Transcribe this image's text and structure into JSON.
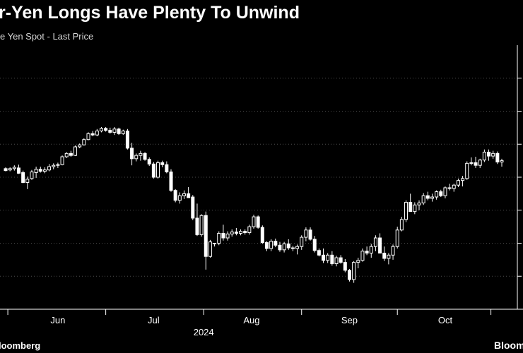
{
  "header": {
    "title": "r-Yen Longs Have Plenty To Unwind",
    "subtitle": "e Yen Spot - Last Price"
  },
  "footer": {
    "source": "loomberg",
    "brand": "Bloom"
  },
  "colors": {
    "background": "#000000",
    "candle": "#ffffff",
    "axis": "#ffffff",
    "grid": "#4d4d4d",
    "text": "#ffffff"
  },
  "chart_data": {
    "type": "candlestick",
    "title": "r-Yen Longs Have Plenty To Unwind",
    "subtitle": "e Yen Spot - Last Price",
    "x_tick_labels": [
      "Jun",
      "Jul",
      "Aug",
      "Sep",
      "Oct"
    ],
    "x_year_label": "2024",
    "x_tick_positions_data": [
      2,
      22,
      43,
      63,
      83
    ],
    "x_range": [
      -3,
      110
    ],
    "ylim": [
      0,
      400
    ],
    "y_gridlines": [
      50,
      100,
      150,
      200,
      250,
      300,
      350
    ],
    "y_tick_labels_visible": false,
    "grid": true,
    "series": [
      {
        "values": [
          [
            1,
            213,
            215,
            209,
            210
          ],
          [
            2,
            211,
            215,
            209,
            213
          ],
          [
            3,
            213,
            218,
            210,
            215
          ],
          [
            4,
            214,
            219,
            205,
            206
          ],
          [
            5,
            207,
            210,
            191,
            192
          ],
          [
            6,
            192,
            201,
            182,
            197
          ],
          [
            7,
            198,
            211,
            196,
            208
          ],
          [
            8,
            207,
            216,
            199,
            212
          ],
          [
            9,
            212,
            216,
            207,
            209
          ],
          [
            10,
            209,
            215,
            206,
            211
          ],
          [
            11,
            211,
            220,
            209,
            216
          ],
          [
            12,
            216,
            221,
            212,
            218
          ],
          [
            13,
            218,
            222,
            214,
            219
          ],
          [
            14,
            219,
            233,
            218,
            231
          ],
          [
            15,
            231,
            238,
            229,
            236
          ],
          [
            16,
            236,
            240,
            231,
            233
          ],
          [
            17,
            233,
            248,
            232,
            246
          ],
          [
            18,
            246,
            251,
            244,
            249
          ],
          [
            19,
            249,
            259,
            248,
            257
          ],
          [
            20,
            257,
            268,
            256,
            266
          ],
          [
            21,
            266,
            270,
            262,
            264
          ],
          [
            22,
            264,
            273,
            262,
            270
          ],
          [
            23,
            270,
            276,
            268,
            274
          ],
          [
            24,
            274,
            276,
            269,
            271
          ],
          [
            25,
            271,
            275,
            266,
            268
          ],
          [
            26,
            268,
            276,
            264,
            273
          ],
          [
            27,
            273,
            275,
            264,
            266
          ],
          [
            28,
            266,
            272,
            264,
            270
          ],
          [
            29,
            270,
            273,
            242,
            244
          ],
          [
            30,
            244,
            252,
            218,
            228
          ],
          [
            31,
            228,
            236,
            224,
            233
          ],
          [
            32,
            233,
            240,
            225,
            236
          ],
          [
            33,
            236,
            238,
            225,
            227
          ],
          [
            34,
            227,
            230,
            217,
            220
          ],
          [
            35,
            220,
            223,
            198,
            200
          ],
          [
            36,
            200,
            225,
            198,
            222
          ],
          [
            37,
            222,
            225,
            215,
            219
          ],
          [
            38,
            219,
            224,
            206,
            208
          ],
          [
            39,
            208,
            212,
            178,
            180
          ],
          [
            40,
            180,
            182,
            162,
            165
          ],
          [
            41,
            165,
            177,
            160,
            172
          ],
          [
            42,
            172,
            180,
            167,
            175
          ],
          [
            43,
            175,
            185,
            170,
            169
          ],
          [
            44,
            170,
            173,
            135,
            138
          ],
          [
            45,
            138,
            160,
            111,
            113
          ],
          [
            46,
            113,
            144,
            110,
            142
          ],
          [
            47,
            142,
            148,
            60,
            80
          ],
          [
            48,
            80,
            105,
            78,
            102
          ],
          [
            49,
            100,
            100,
            95,
            100
          ],
          [
            50,
            100,
            118,
            97,
            115
          ],
          [
            51,
            115,
            128,
            104,
            108
          ],
          [
            52,
            108,
            118,
            104,
            114
          ],
          [
            53,
            114,
            121,
            110,
            117
          ],
          [
            54,
            117,
            123,
            112,
            115
          ],
          [
            55,
            115,
            121,
            112,
            118
          ],
          [
            56,
            118,
            121,
            113,
            116
          ],
          [
            57,
            116,
            128,
            113,
            125
          ],
          [
            58,
            125,
            143,
            122,
            140
          ],
          [
            59,
            140,
            142,
            122,
            124
          ],
          [
            60,
            124,
            127,
            99,
            101
          ],
          [
            61,
            101,
            103,
            88,
            92
          ],
          [
            62,
            92,
            106,
            88,
            103
          ],
          [
            63,
            103,
            107,
            94,
            97
          ],
          [
            64,
            97,
            102,
            87,
            90
          ],
          [
            65,
            90,
            102,
            86,
            99
          ],
          [
            66,
            99,
            106,
            90,
            93
          ],
          [
            67,
            93,
            96,
            88,
            92
          ],
          [
            68,
            92,
            98,
            83,
            95
          ],
          [
            69,
            95,
            112,
            90,
            109
          ],
          [
            70,
            109,
            124,
            103,
            120
          ],
          [
            71,
            120,
            124,
            104,
            106
          ],
          [
            72,
            106,
            111,
            86,
            89
          ],
          [
            73,
            89,
            92,
            80,
            82
          ],
          [
            74,
            82,
            92,
            70,
            74
          ],
          [
            75,
            74,
            85,
            70,
            82
          ],
          [
            76,
            82,
            88,
            66,
            69
          ],
          [
            77,
            69,
            81,
            65,
            78
          ],
          [
            78,
            78,
            82,
            69,
            71
          ],
          [
            79,
            71,
            76,
            56,
            59
          ],
          [
            80,
            59,
            61,
            42,
            45
          ],
          [
            81,
            45,
            73,
            40,
            71
          ],
          [
            82,
            71,
            78,
            62,
            74
          ],
          [
            83,
            74,
            92,
            72,
            88
          ],
          [
            84,
            88,
            95,
            82,
            85
          ],
          [
            85,
            85,
            99,
            78,
            95
          ],
          [
            86,
            95,
            112,
            88,
            108
          ],
          [
            87,
            108,
            115,
            98,
            85
          ],
          [
            88,
            85,
            95,
            73,
            77
          ],
          [
            89,
            77,
            85,
            68,
            82
          ],
          [
            90,
            82,
            98,
            75,
            95
          ],
          [
            91,
            95,
            125,
            92,
            120
          ],
          [
            92,
            120,
            140,
            118,
            136
          ],
          [
            93,
            136,
            165,
            132,
            162
          ],
          [
            94,
            162,
            175,
            155,
            148
          ],
          [
            95,
            148,
            162,
            144,
            158
          ],
          [
            96,
            158,
            165,
            150,
            161
          ],
          [
            97,
            161,
            176,
            158,
            172
          ],
          [
            98,
            172,
            178,
            165,
            168
          ],
          [
            99,
            168,
            175,
            163,
            170
          ],
          [
            100,
            170,
            180,
            166,
            178
          ],
          [
            101,
            178,
            181,
            170,
            172
          ],
          [
            102,
            172,
            186,
            168,
            184
          ],
          [
            103,
            184,
            190,
            180,
            183
          ],
          [
            104,
            183,
            190,
            178,
            188
          ],
          [
            105,
            188,
            198,
            185,
            195
          ],
          [
            106,
            195,
            202,
            186,
            198
          ],
          [
            107,
            198,
            224,
            196,
            221
          ],
          [
            108,
            221,
            230,
            218,
            222
          ],
          [
            109,
            222,
            231,
            214,
            218
          ],
          [
            110,
            218,
            228,
            214,
            226
          ],
          [
            111,
            226,
            242,
            223,
            238
          ],
          [
            112,
            238,
            242,
            225,
            232
          ],
          [
            113,
            232,
            240,
            228,
            236
          ],
          [
            114,
            236,
            239,
            220,
            223
          ],
          [
            115,
            223,
            228,
            216,
            225
          ]
        ]
      }
    ],
    "value_format": "[index, open, high, low, close]"
  }
}
